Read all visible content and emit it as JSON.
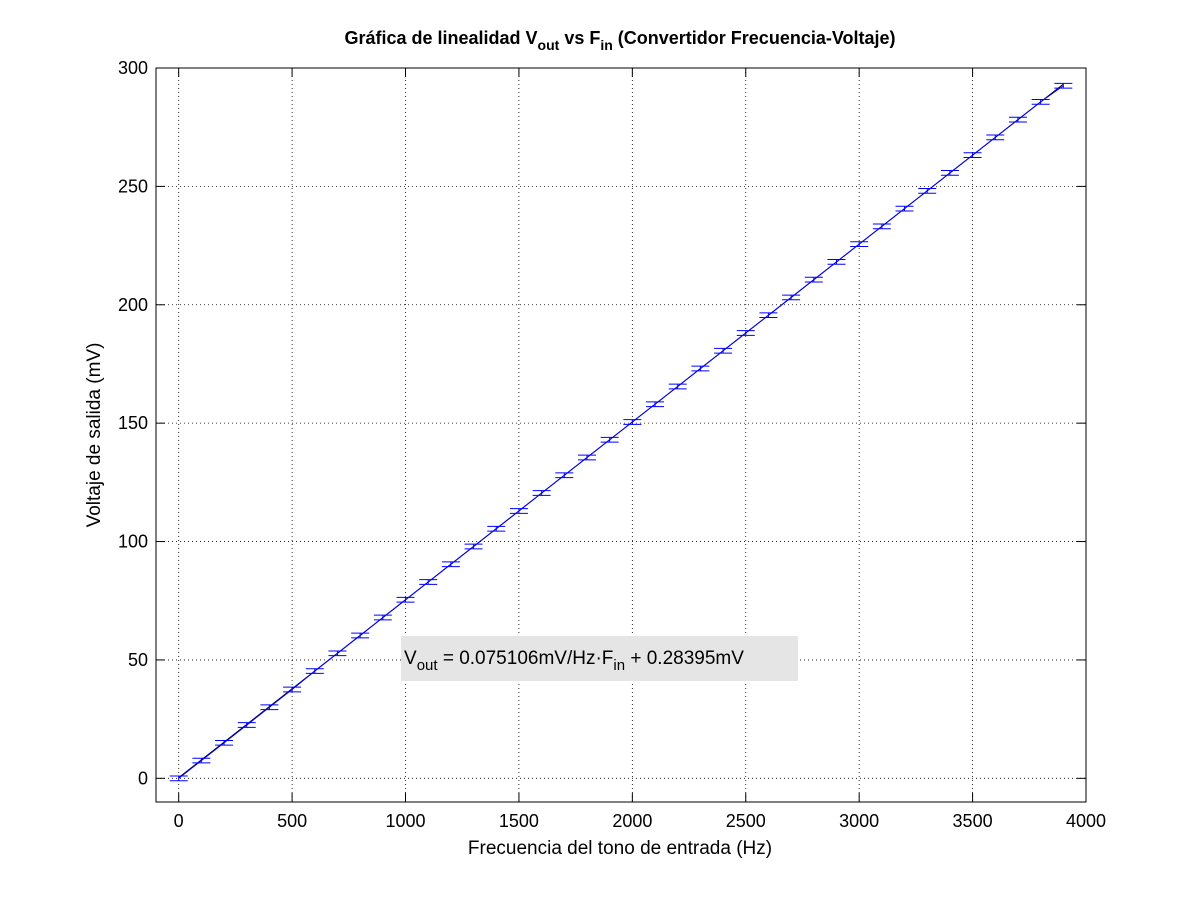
{
  "chart_data": {
    "type": "line",
    "title": {
      "prefix": "Gráfica de linealidad V",
      "sub1": "out",
      "middle": " vs F",
      "sub2": "in",
      "suffix": " (Convertidor Frecuencia-Voltaje)"
    },
    "xlabel": "Frecuencia del tono de entrada (Hz)",
    "ylabel": "Voltaje de salida (mV)",
    "xlim": [
      -100,
      4000
    ],
    "ylim": [
      -10,
      300
    ],
    "xticks": [
      0,
      500,
      1000,
      1500,
      2000,
      2500,
      3000,
      3500,
      4000
    ],
    "yticks": [
      0,
      50,
      100,
      150,
      200,
      250,
      300
    ],
    "grid": true,
    "legend": "none",
    "series": [
      {
        "style": "errorbar",
        "color": "#0000ff",
        "x": [
          0,
          100,
          200,
          300,
          400,
          500,
          600,
          700,
          800,
          900,
          1000,
          1100,
          1200,
          1300,
          1400,
          1500,
          1600,
          1700,
          1800,
          1900,
          2000,
          2100,
          2200,
          2300,
          2400,
          2500,
          2600,
          2700,
          2800,
          2900,
          3000,
          3100,
          3200,
          3300,
          3400,
          3500,
          3600,
          3700,
          3800,
          3900
        ],
        "y": [
          0,
          7.5,
          15,
          22.5,
          30,
          37.5,
          45.3,
          52.8,
          60.3,
          67.9,
          75.4,
          82.9,
          90.4,
          97.9,
          105.4,
          112.9,
          120.5,
          128.0,
          135.5,
          143.0,
          150.5,
          158.0,
          165.5,
          173.1,
          180.6,
          188.1,
          195.6,
          203.1,
          210.6,
          218.1,
          225.6,
          233.1,
          240.6,
          248.1,
          255.7,
          263.2,
          270.7,
          278.2,
          285.7,
          292.5
        ],
        "error": 1.0
      },
      {
        "style": "fit-line",
        "color": "#000000",
        "x": [
          0,
          3900
        ],
        "y": [
          0.28,
          293.2
        ]
      }
    ],
    "annotation": {
      "parts": [
        "V",
        "out",
        " = 0.075106mV/Hz·F",
        "in",
        " + 0.28395mV"
      ],
      "background": "#e5e5e5"
    }
  }
}
